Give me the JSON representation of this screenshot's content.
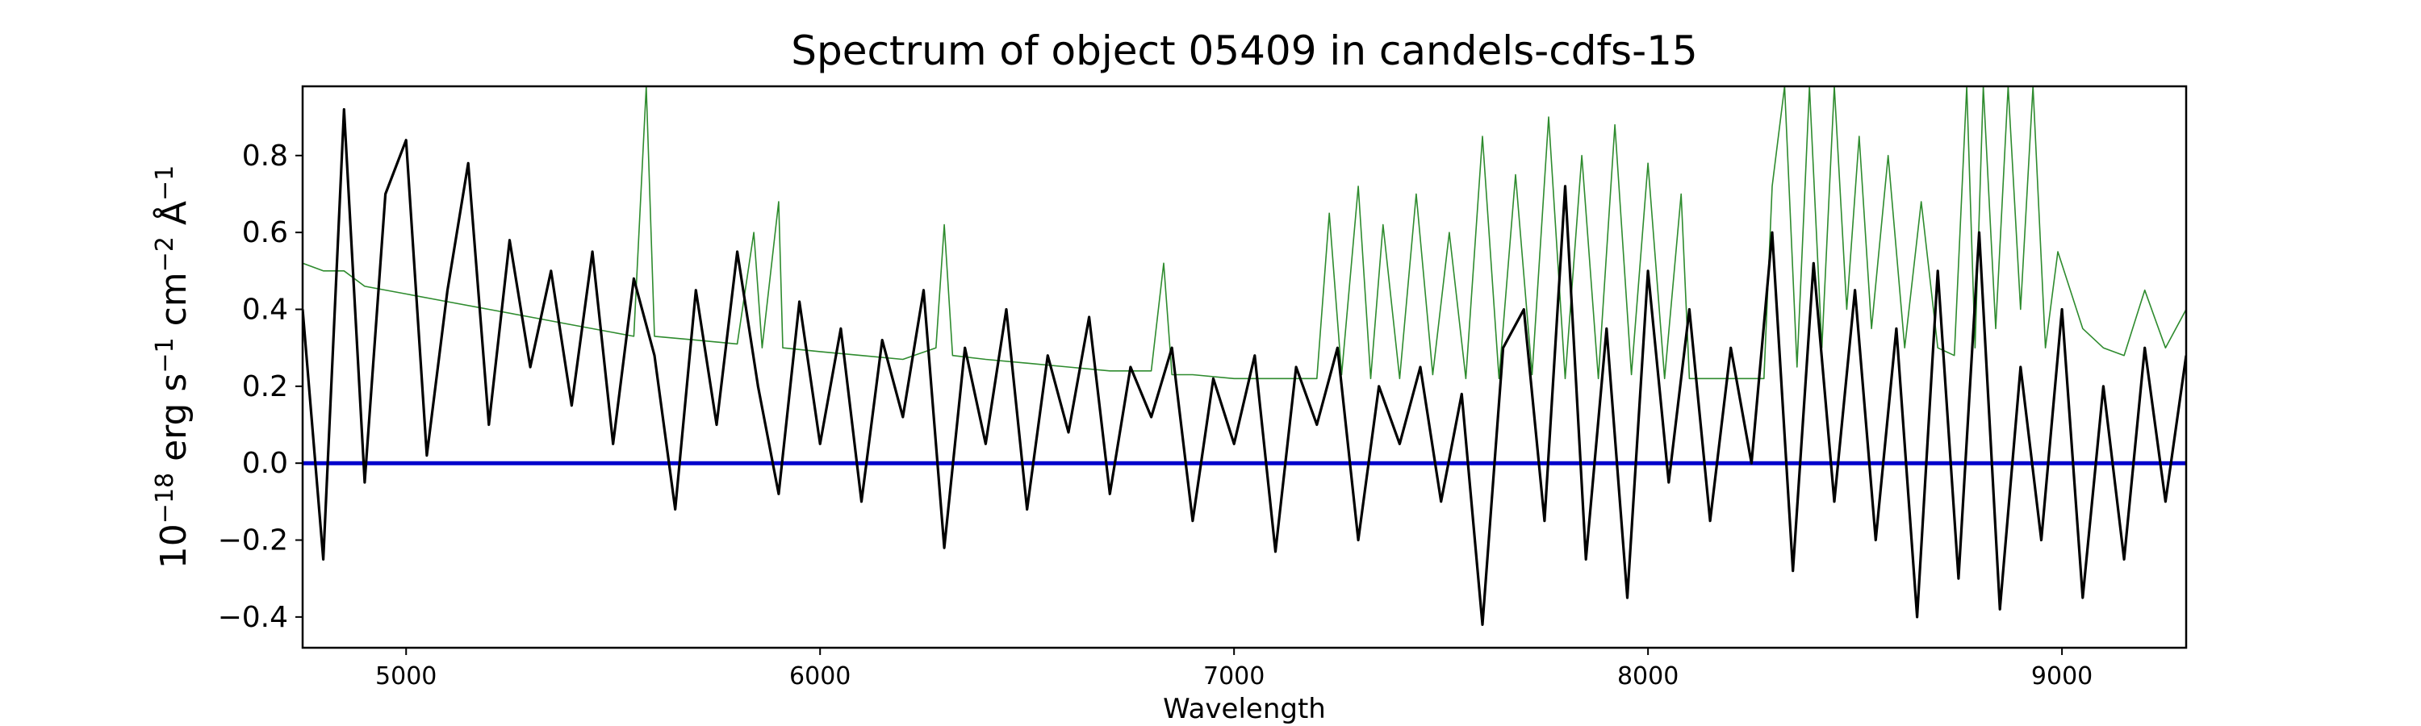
{
  "chart_data": {
    "type": "line",
    "title": "Spectrum of object 05409 in candels-cdfs-15",
    "xlabel": "Wavelength",
    "ylabel": {
      "base": "10",
      "base_exp": "−18",
      "p1": " erg s",
      "p1_exp": "−1",
      "p2": " cm",
      "p2_exp": "−2",
      "p3": " Å",
      "p3_exp": "−1"
    },
    "xlim": [
      4750,
      9300
    ],
    "ylim": [
      -0.48,
      0.98
    ],
    "x_ticks": [
      5000,
      6000,
      7000,
      8000,
      9000
    ],
    "x_tick_labels": [
      "5000",
      "6000",
      "7000",
      "8000",
      "9000"
    ],
    "y_ticks": [
      -0.4,
      -0.2,
      0.0,
      0.2,
      0.4,
      0.6,
      0.8
    ],
    "y_tick_labels": [
      "−0.4",
      "−0.2",
      "0.0",
      "0.2",
      "0.4",
      "0.6",
      "0.8"
    ],
    "grid": false,
    "legend": "none",
    "colors": {
      "flux": "#000000",
      "error": "#2e8b2e",
      "zero": "#0000cc"
    },
    "series": [
      {
        "role": "flux",
        "x": [
          4750,
          4800,
          4850,
          4900,
          4950,
          5000,
          5050,
          5100,
          5150,
          5200,
          5250,
          5300,
          5350,
          5400,
          5450,
          5500,
          5550,
          5600,
          5650,
          5700,
          5750,
          5800,
          5850,
          5900,
          5950,
          6000,
          6050,
          6100,
          6150,
          6200,
          6250,
          6300,
          6350,
          6400,
          6450,
          6500,
          6550,
          6600,
          6650,
          6700,
          6750,
          6800,
          6850,
          6900,
          6950,
          7000,
          7050,
          7100,
          7150,
          7200,
          7250,
          7300,
          7350,
          7400,
          7450,
          7500,
          7550,
          7600,
          7650,
          7700,
          7750,
          7800,
          7850,
          7900,
          7950,
          8000,
          8050,
          8100,
          8150,
          8200,
          8250,
          8300,
          8350,
          8400,
          8450,
          8500,
          8550,
          8600,
          8650,
          8700,
          8750,
          8800,
          8850,
          8900,
          8950,
          9000,
          9050,
          9100,
          9150,
          9200,
          9250,
          9300
        ],
        "y": [
          0.4,
          -0.25,
          0.92,
          -0.05,
          0.7,
          0.84,
          0.02,
          0.45,
          0.78,
          0.1,
          0.58,
          0.25,
          0.5,
          0.15,
          0.55,
          0.05,
          0.48,
          0.28,
          -0.12,
          0.45,
          0.1,
          0.55,
          0.2,
          -0.08,
          0.42,
          0.05,
          0.35,
          -0.1,
          0.32,
          0.12,
          0.45,
          -0.22,
          0.3,
          0.05,
          0.4,
          -0.12,
          0.28,
          0.08,
          0.38,
          -0.08,
          0.25,
          0.12,
          0.3,
          -0.15,
          0.22,
          0.05,
          0.28,
          -0.23,
          0.25,
          0.1,
          0.3,
          -0.2,
          0.2,
          0.05,
          0.25,
          -0.1,
          0.18,
          -0.42,
          0.3,
          0.4,
          -0.15,
          0.72,
          -0.25,
          0.35,
          -0.35,
          0.5,
          -0.05,
          0.4,
          -0.15,
          0.3,
          0.0,
          0.6,
          -0.28,
          0.52,
          -0.1,
          0.45,
          -0.2,
          0.35,
          -0.4,
          0.5,
          -0.3,
          0.6,
          -0.38,
          0.25,
          -0.2,
          0.4,
          -0.35,
          0.2,
          -0.25,
          0.3,
          -0.1,
          0.28
        ]
      },
      {
        "role": "error",
        "x": [
          4750,
          4800,
          4850,
          4900,
          5000,
          5100,
          5200,
          5300,
          5400,
          5500,
          5550,
          5580,
          5600,
          5700,
          5800,
          5840,
          5860,
          5900,
          5910,
          6000,
          6100,
          6200,
          6280,
          6300,
          6320,
          6400,
          6500,
          6600,
          6700,
          6800,
          6830,
          6850,
          6900,
          7000,
          7100,
          7200,
          7230,
          7260,
          7300,
          7330,
          7360,
          7400,
          7440,
          7480,
          7520,
          7560,
          7600,
          7640,
          7680,
          7720,
          7760,
          7800,
          7840,
          7880,
          7920,
          7960,
          8000,
          8040,
          8080,
          8100,
          8200,
          8280,
          8300,
          8330,
          8360,
          8390,
          8420,
          8450,
          8480,
          8510,
          8540,
          8580,
          8620,
          8660,
          8700,
          8740,
          8770,
          8790,
          8810,
          8840,
          8870,
          8900,
          8930,
          8960,
          8990,
          9050,
          9100,
          9150,
          9200,
          9250,
          9300
        ],
        "y": [
          0.52,
          0.5,
          0.5,
          0.46,
          0.44,
          0.42,
          0.4,
          0.38,
          0.36,
          0.34,
          0.33,
          0.98,
          0.33,
          0.32,
          0.31,
          0.6,
          0.3,
          0.68,
          0.3,
          0.29,
          0.28,
          0.27,
          0.3,
          0.62,
          0.28,
          0.27,
          0.26,
          0.25,
          0.24,
          0.24,
          0.52,
          0.23,
          0.23,
          0.22,
          0.22,
          0.22,
          0.65,
          0.23,
          0.72,
          0.22,
          0.62,
          0.22,
          0.7,
          0.23,
          0.6,
          0.22,
          0.85,
          0.22,
          0.75,
          0.23,
          0.9,
          0.22,
          0.8,
          0.22,
          0.88,
          0.23,
          0.78,
          0.22,
          0.7,
          0.22,
          0.22,
          0.22,
          0.72,
          0.98,
          0.25,
          0.98,
          0.3,
          0.98,
          0.4,
          0.85,
          0.35,
          0.8,
          0.3,
          0.68,
          0.3,
          0.28,
          0.98,
          0.3,
          0.98,
          0.35,
          0.98,
          0.4,
          0.98,
          0.3,
          0.55,
          0.35,
          0.3,
          0.28,
          0.45,
          0.3,
          0.4
        ]
      },
      {
        "role": "zero",
        "x": [
          4750,
          9300
        ],
        "y": [
          0.0,
          0.0
        ]
      }
    ]
  }
}
